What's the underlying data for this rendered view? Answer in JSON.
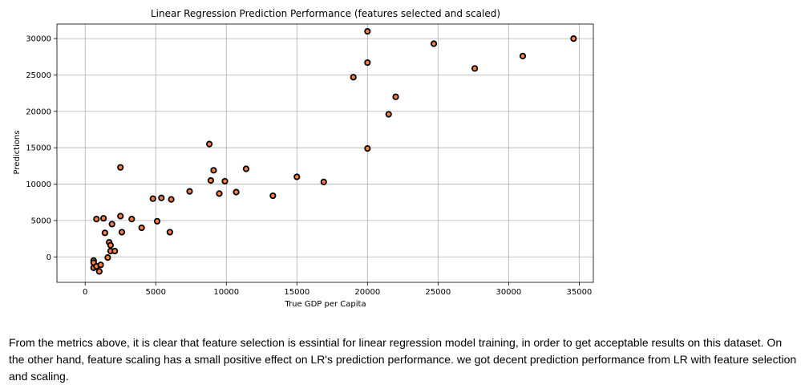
{
  "chart_data": {
    "type": "scatter",
    "title": "Linear Regression Prediction Performance (features selected and scaled)",
    "xlabel": "True GDP per Capita",
    "ylabel": "Predictions",
    "xlim": [
      -2000,
      36000
    ],
    "ylim": [
      -3500,
      32000
    ],
    "xticks": [
      0,
      5000,
      10000,
      15000,
      20000,
      25000,
      30000,
      35000
    ],
    "yticks": [
      0,
      5000,
      10000,
      15000,
      20000,
      25000,
      30000
    ],
    "grid": true,
    "marker_face": "#ff7f3f",
    "marker_edge": "#000000",
    "points": [
      [
        600,
        -500
      ],
      [
        600,
        -800
      ],
      [
        600,
        -1500
      ],
      [
        800,
        -1300
      ],
      [
        1000,
        -2000
      ],
      [
        1100,
        -1100
      ],
      [
        800,
        5200
      ],
      [
        1300,
        5300
      ],
      [
        1400,
        3300
      ],
      [
        1600,
        -100
      ],
      [
        1700,
        2000
      ],
      [
        1800,
        800
      ],
      [
        1800,
        1600
      ],
      [
        1900,
        4500
      ],
      [
        2100,
        800
      ],
      [
        2500,
        12300
      ],
      [
        2500,
        5600
      ],
      [
        2600,
        3400
      ],
      [
        3300,
        5200
      ],
      [
        4000,
        4000
      ],
      [
        4800,
        8000
      ],
      [
        5100,
        4900
      ],
      [
        5400,
        8100
      ],
      [
        6000,
        3400
      ],
      [
        6100,
        7900
      ],
      [
        7400,
        9000
      ],
      [
        8800,
        15500
      ],
      [
        8900,
        10500
      ],
      [
        9100,
        11900
      ],
      [
        9500,
        8700
      ],
      [
        9900,
        10400
      ],
      [
        10700,
        8900
      ],
      [
        11400,
        12100
      ],
      [
        13300,
        8400
      ],
      [
        15000,
        11000
      ],
      [
        16900,
        10300
      ],
      [
        19000,
        24700
      ],
      [
        20000,
        31000
      ],
      [
        20000,
        26700
      ],
      [
        20000,
        14900
      ],
      [
        21500,
        19600
      ],
      [
        22000,
        22000
      ],
      [
        24700,
        29300
      ],
      [
        27600,
        25900
      ],
      [
        31000,
        27600
      ],
      [
        34600,
        30000
      ]
    ]
  },
  "note": {
    "text": "From the metrics above, it is clear that feature selection is essintial for linear regression model training, in order to get acceptable results on this dataset. On the other hand, feature scaling has a small positive effect on LR's prediction performance. we got decent prediction performance from LR with feature selection and scaling."
  }
}
